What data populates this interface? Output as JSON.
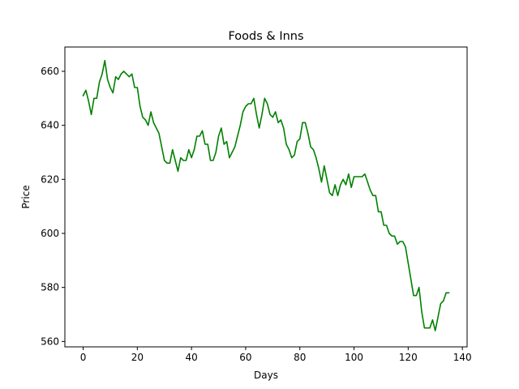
{
  "chart_data": {
    "type": "line",
    "title": "Foods & Inns",
    "xlabel": "Days",
    "ylabel": "Price",
    "xlim": [
      -6.75,
      141.75
    ],
    "ylim": [
      558.0,
      669.0
    ],
    "xticks": [
      0,
      20,
      40,
      60,
      80,
      100,
      120,
      140
    ],
    "yticks": [
      560,
      580,
      600,
      620,
      640,
      660
    ],
    "grid": false,
    "legend": "none",
    "series": [
      {
        "color": "#008000",
        "x": [
          0,
          1,
          2,
          3,
          4,
          5,
          6,
          7,
          8,
          9,
          10,
          11,
          12,
          13,
          14,
          15,
          16,
          17,
          18,
          19,
          20,
          21,
          22,
          23,
          24,
          25,
          26,
          27,
          28,
          29,
          30,
          31,
          32,
          33,
          34,
          35,
          36,
          37,
          38,
          39,
          40,
          41,
          42,
          43,
          44,
          45,
          46,
          47,
          48,
          49,
          50,
          51,
          52,
          53,
          54,
          55,
          56,
          57,
          58,
          59,
          60,
          61,
          62,
          63,
          64,
          65,
          66,
          67,
          68,
          69,
          70,
          71,
          72,
          73,
          74,
          75,
          76,
          77,
          78,
          79,
          80,
          81,
          82,
          83,
          84,
          85,
          86,
          87,
          88,
          89,
          90,
          91,
          92,
          93,
          94,
          95,
          96,
          97,
          98,
          99,
          100,
          101,
          102,
          103,
          104,
          105,
          106,
          107,
          108,
          109,
          110,
          111,
          112,
          113,
          114,
          115,
          116,
          117,
          118,
          119,
          120,
          121,
          122,
          123,
          124,
          125,
          126,
          127,
          128,
          129,
          130,
          131,
          132,
          133,
          134,
          135
        ],
        "values": [
          651,
          653,
          649,
          644,
          650,
          650,
          656,
          659,
          664,
          657,
          654,
          652,
          658,
          657,
          659,
          660,
          659,
          658,
          659,
          654,
          654,
          647,
          643,
          642,
          640,
          645,
          641,
          639,
          637,
          632,
          627,
          626,
          626,
          631,
          627,
          623,
          628,
          627,
          627,
          631,
          628,
          631,
          636,
          636,
          638,
          633,
          633,
          627,
          627,
          630,
          636,
          639,
          633,
          634,
          628,
          630,
          632,
          636,
          640,
          645,
          647,
          648,
          648,
          650,
          644,
          639,
          644,
          650,
          648,
          644,
          643,
          645,
          641,
          642,
          639,
          633,
          631,
          628,
          629,
          634,
          635,
          641,
          641,
          637,
          632,
          631,
          628,
          624,
          619,
          625,
          620,
          615,
          614,
          618,
          614,
          618,
          620,
          618,
          622,
          617,
          621,
          621,
          621,
          621,
          622,
          619,
          616,
          614,
          614,
          608,
          608,
          603,
          603,
          600,
          599,
          599,
          596,
          597,
          597,
          595,
          589,
          583,
          577,
          577,
          580,
          571,
          565,
          565,
          565,
          568,
          564,
          569,
          574,
          575,
          578,
          578
        ]
      }
    ]
  }
}
